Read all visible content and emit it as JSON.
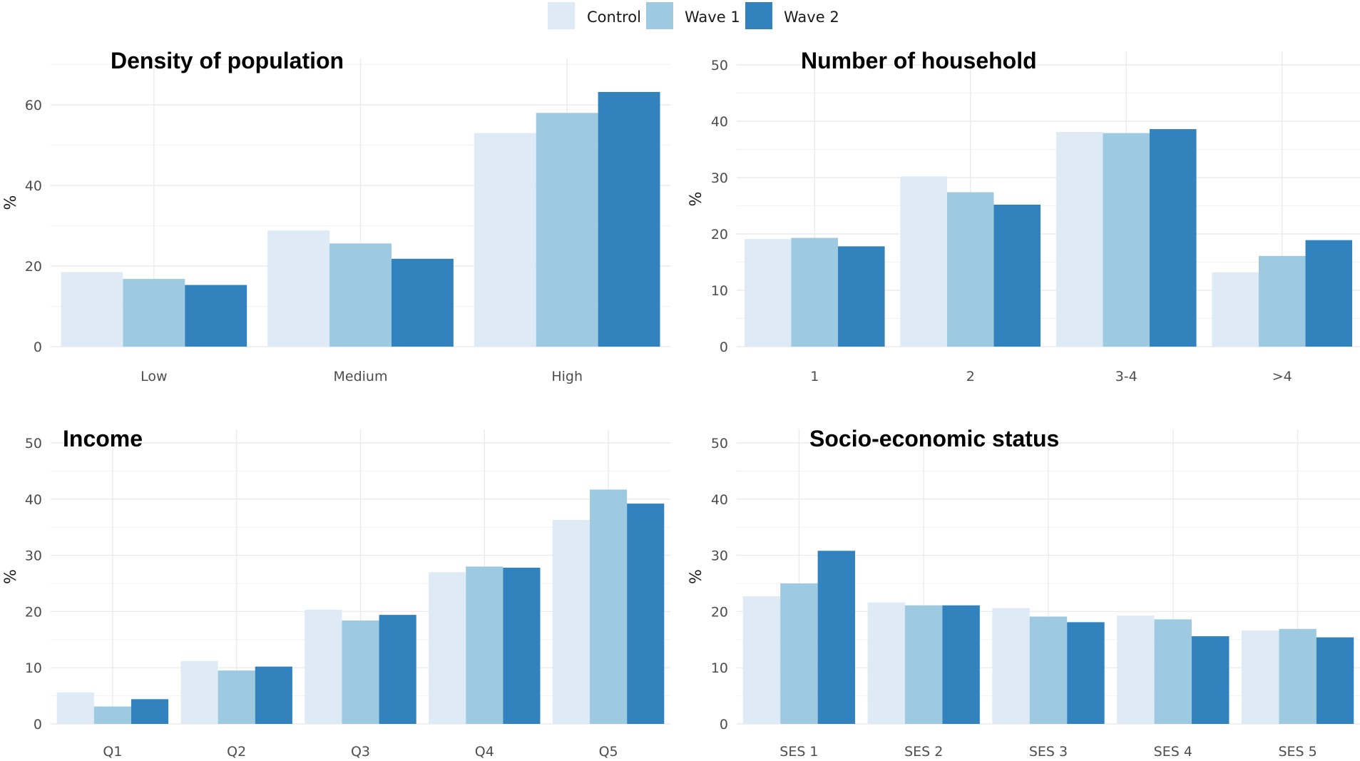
{
  "legend": {
    "items": [
      {
        "name": "Control",
        "color": "#deebf7"
      },
      {
        "name": "Wave 1",
        "color": "#9ecae1"
      },
      {
        "name": "Wave 2",
        "color": "#3182bd"
      }
    ]
  },
  "chart_data": [
    {
      "type": "bar",
      "title": "Density of population",
      "xlabel": "",
      "ylabel": "%",
      "categories": [
        "Low",
        "Medium",
        "High"
      ],
      "series": [
        {
          "name": "Control",
          "values": [
            18.5,
            28.8,
            53.0
          ]
        },
        {
          "name": "Wave 1",
          "values": [
            16.8,
            25.6,
            58.0
          ]
        },
        {
          "name": "Wave 2",
          "values": [
            15.3,
            21.8,
            63.2
          ]
        }
      ],
      "ylim": [
        0,
        70
      ],
      "yticks": [
        0,
        20,
        40,
        60
      ],
      "ytick_labels": [
        "0",
        "20",
        "40",
        "60"
      ],
      "legend": "top"
    },
    {
      "type": "bar",
      "title": "Number of household",
      "xlabel": "",
      "ylabel": "%",
      "categories": [
        "1",
        "2",
        "3-4",
        ">4"
      ],
      "series": [
        {
          "name": "Control",
          "values": [
            19.1,
            30.2,
            38.1,
            13.2
          ]
        },
        {
          "name": "Wave 1",
          "values": [
            19.3,
            27.4,
            37.9,
            16.1
          ]
        },
        {
          "name": "Wave 2",
          "values": [
            17.8,
            25.2,
            38.6,
            18.9
          ]
        }
      ],
      "ylim": [
        0,
        52
      ],
      "yticks": [
        0,
        10,
        20,
        30,
        40,
        50
      ],
      "ytick_labels": [
        "0",
        "10",
        "20",
        "30",
        "40",
        "50"
      ],
      "legend": "top"
    },
    {
      "type": "bar",
      "title": "Income",
      "xlabel": "",
      "ylabel": "%",
      "categories": [
        "Q1",
        "Q2",
        "Q3",
        "Q4",
        "Q5"
      ],
      "series": [
        {
          "name": "Control",
          "values": [
            5.6,
            11.2,
            20.3,
            27.0,
            36.3
          ]
        },
        {
          "name": "Wave 1",
          "values": [
            3.1,
            9.5,
            18.4,
            28.0,
            41.7
          ]
        },
        {
          "name": "Wave 2",
          "values": [
            4.4,
            10.2,
            19.4,
            27.8,
            39.2
          ]
        }
      ],
      "ylim": [
        0,
        52
      ],
      "yticks": [
        0,
        10,
        20,
        30,
        40,
        50
      ],
      "ytick_labels": [
        "0",
        "10",
        "20",
        "30",
        "40",
        "50"
      ],
      "legend": "top"
    },
    {
      "type": "bar",
      "title": "Socio-economic status",
      "xlabel": "",
      "ylabel": "%",
      "categories": [
        "SES 1",
        "SES 2",
        "SES 3",
        "SES 4",
        "SES 5"
      ],
      "series": [
        {
          "name": "Control",
          "values": [
            22.7,
            21.6,
            20.6,
            19.3,
            16.6
          ]
        },
        {
          "name": "Wave 1",
          "values": [
            25.0,
            21.1,
            19.1,
            18.6,
            16.9
          ]
        },
        {
          "name": "Wave 2",
          "values": [
            30.8,
            21.1,
            18.1,
            15.6,
            15.4
          ]
        }
      ],
      "ylim": [
        0,
        52
      ],
      "yticks": [
        0,
        10,
        20,
        30,
        40,
        50
      ],
      "ytick_labels": [
        "0",
        "10",
        "20",
        "30",
        "40",
        "50"
      ],
      "legend": "top"
    }
  ]
}
